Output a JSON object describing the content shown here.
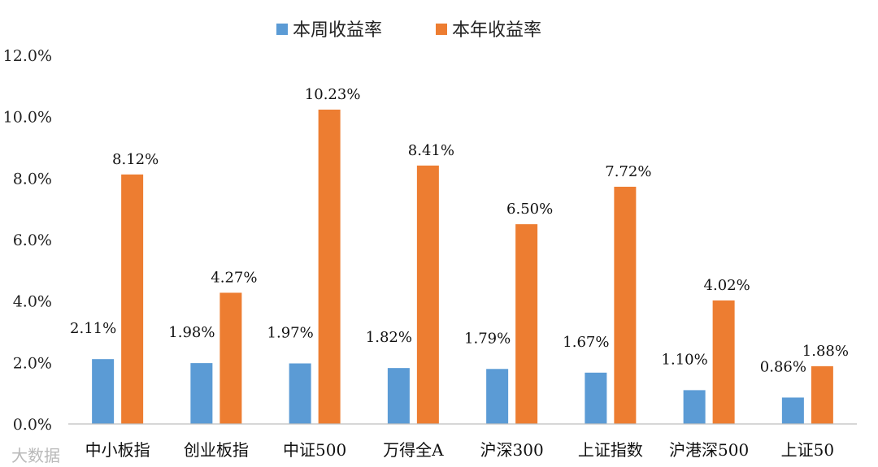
{
  "chart_data": {
    "type": "bar",
    "categories": [
      "中小板指",
      "创业板指",
      "中证500",
      "万得全A",
      "沪深300",
      "上证指数",
      "沪港深500",
      "上证50"
    ],
    "series": [
      {
        "name": "本周收益率",
        "color": "#5b9bd5",
        "values": [
          2.11,
          1.98,
          1.97,
          1.82,
          1.79,
          1.67,
          1.1,
          0.86
        ],
        "labels": [
          "2.11%",
          "1.98%",
          "1.97%",
          "1.82%",
          "1.79%",
          "1.67%",
          "1.10%",
          "0.86%"
        ]
      },
      {
        "name": "本年收益率",
        "color": "#ed7d31",
        "values": [
          8.12,
          4.27,
          10.23,
          8.41,
          6.5,
          7.72,
          4.02,
          1.88
        ],
        "labels": [
          "8.12%",
          "4.27%",
          "10.23%",
          "8.41%",
          "6.50%",
          "7.72%",
          "4.02%",
          "1.88%"
        ]
      }
    ],
    "ylim": [
      0,
      12
    ],
    "yticks": [
      "0.0%",
      "2.0%",
      "4.0%",
      "6.0%",
      "8.0%",
      "10.0%",
      "12.0%"
    ],
    "legend_position": "top-center",
    "grid": false
  },
  "watermark": "大数据"
}
